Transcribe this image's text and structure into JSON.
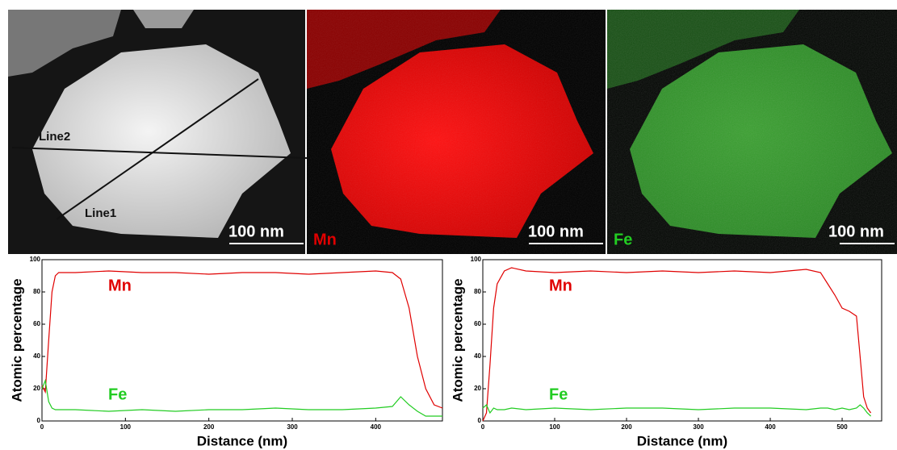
{
  "images": {
    "panels": [
      {
        "lines": [
          "Line2",
          "Line1"
        ],
        "scale_bar": "100 nm"
      },
      {
        "element": "Mn",
        "scale_bar": "100 nm"
      },
      {
        "element": "Fe",
        "scale_bar": "100 nm"
      }
    ]
  },
  "chart_data": [
    {
      "type": "line",
      "y_label": "Atomic percentage",
      "x_label": "Distance (nm)",
      "x": [
        0,
        4,
        8,
        12,
        16,
        20,
        40,
        80,
        120,
        160,
        200,
        240,
        280,
        320,
        360,
        400,
        420,
        430,
        440,
        450,
        460,
        470,
        480
      ],
      "series": [
        {
          "name": "Mn",
          "color": "#e00000",
          "values": [
            22,
            18,
            50,
            80,
            90,
            92,
            92,
            93,
            92,
            92,
            91,
            92,
            92,
            91,
            92,
            93,
            92,
            88,
            70,
            40,
            20,
            10,
            8
          ]
        },
        {
          "name": "Fe",
          "color": "#22cc22",
          "values": [
            20,
            25,
            12,
            8,
            7,
            7,
            7,
            6,
            7,
            6,
            7,
            7,
            8,
            7,
            7,
            8,
            9,
            15,
            10,
            6,
            3,
            3,
            3
          ]
        }
      ],
      "xlim": [
        0,
        480
      ],
      "xticks": [
        0,
        100,
        200,
        300,
        400
      ],
      "ylim": [
        0,
        100
      ],
      "yticks": [
        0,
        20,
        40,
        60,
        80,
        100
      ]
    },
    {
      "type": "line",
      "y_label": "Atomic percentage",
      "x_label": "Distance (nm)",
      "x": [
        0,
        5,
        10,
        15,
        20,
        30,
        40,
        60,
        100,
        150,
        200,
        250,
        300,
        350,
        400,
        450,
        470,
        480,
        490,
        500,
        510,
        520,
        525,
        530,
        535,
        540
      ],
      "series": [
        {
          "name": "Mn",
          "color": "#e00000",
          "values": [
            0,
            5,
            35,
            70,
            85,
            93,
            95,
            93,
            92,
            93,
            92,
            93,
            92,
            93,
            92,
            94,
            92,
            85,
            78,
            70,
            68,
            65,
            40,
            15,
            8,
            5
          ]
        },
        {
          "name": "Fe",
          "color": "#22cc22",
          "values": [
            8,
            10,
            5,
            8,
            7,
            7,
            8,
            7,
            8,
            7,
            8,
            8,
            7,
            8,
            8,
            7,
            8,
            8,
            7,
            8,
            7,
            8,
            10,
            8,
            5,
            3
          ]
        }
      ],
      "xlim": [
        0,
        555
      ],
      "xticks": [
        0,
        100,
        200,
        300,
        400,
        500
      ],
      "ylim": [
        0,
        100
      ],
      "yticks": [
        0,
        20,
        40,
        60,
        80,
        100
      ]
    }
  ]
}
